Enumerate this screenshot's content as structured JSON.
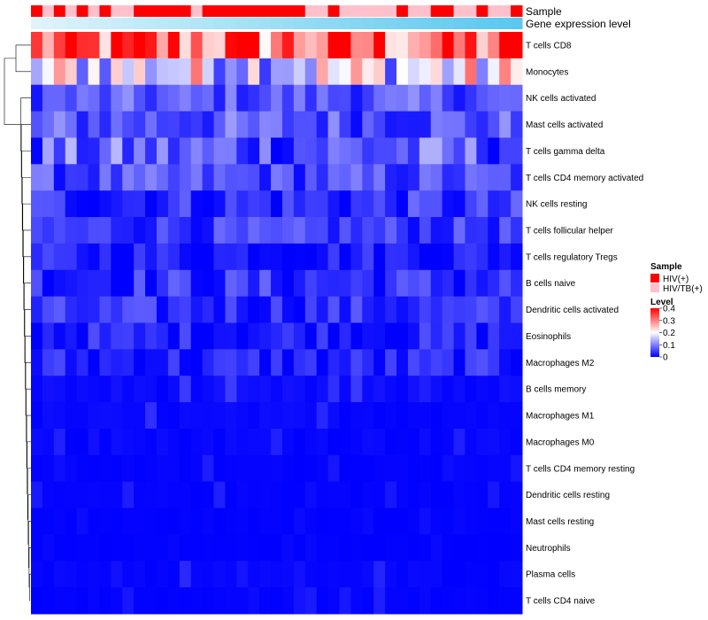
{
  "chart_data": {
    "type": "heatmap",
    "title": "",
    "annotations": [
      {
        "name": "Sample"
      },
      {
        "name": "Gene expression level"
      }
    ],
    "sample_groups": [
      "HIV(+)",
      "HIV/TB(+)",
      "HIV(+)",
      "HIV/TB(+)",
      "HIV(+)",
      "HIV/TB(+)",
      "HIV(+)",
      "HIV/TB(+)",
      "HIV/TB(+)",
      "HIV(+)",
      "HIV(+)",
      "HIV(+)",
      "HIV(+)",
      "HIV(+)",
      "HIV/TB(+)",
      "HIV(+)",
      "HIV(+)",
      "HIV(+)",
      "HIV(+)",
      "HIV(+)",
      "HIV(+)",
      "HIV(+)",
      "HIV(+)",
      "HIV(+)",
      "HIV/TB(+)",
      "HIV/TB(+)",
      "HIV(+)",
      "HIV/TB(+)",
      "HIV/TB(+)",
      "HIV/TB(+)",
      "HIV/TB(+)",
      "HIV/TB(+)",
      "HIV(+)",
      "HIV/TB(+)",
      "HIV/TB(+)",
      "HIV(+)",
      "HIV(+)",
      "HIV/TB(+)",
      "HIV/TB(+)",
      "HIV(+)",
      "HIV/TB(+)",
      "HIV/TB(+)",
      "HIV(+)"
    ],
    "rows": [
      "T cells CD8",
      "Monocytes",
      "NK cells activated",
      "Mast cells activated",
      "T cells gamma delta",
      "T cells CD4 memory activated",
      "NK cells resting",
      "T cells follicular helper",
      "T cells regulatory  Tregs",
      "B cells naive",
      "Dendritic cells activated",
      "Eosinophils",
      "Macrophages M2",
      "B cells memory",
      "Macrophages M1",
      "Macrophages M0",
      "T cells CD4 memory resting",
      "Dendritic cells resting",
      "Mast cells resting",
      "Neutrophils",
      "Plasma cells",
      "T cells CD4 naive"
    ],
    "row_base_levels": [
      0.3,
      0.17,
      0.06,
      0.06,
      0.06,
      0.05,
      0.03,
      0.04,
      0.02,
      0.03,
      0.03,
      0.02,
      0.02,
      0.015,
      0.01,
      0.01,
      0.005,
      0.005,
      0.003,
      0.002,
      0.008,
      0.004
    ],
    "row_spread": [
      0.14,
      0.14,
      0.05,
      0.06,
      0.08,
      0.05,
      0.05,
      0.04,
      0.035,
      0.05,
      0.04,
      0.04,
      0.04,
      0.035,
      0.03,
      0.03,
      0.02,
      0.02,
      0.01,
      0.005,
      0.03,
      0.02
    ],
    "n_samples": 43,
    "color_scale": {
      "min": 0,
      "max": 0.4,
      "colors": [
        "#0000ff",
        "#ffffff",
        "#ff0000"
      ],
      "midpoint": 0.2
    },
    "legend": {
      "sample_title": "Sample",
      "sample_entries": [
        {
          "label": "HIV(+)",
          "color": "#ff0000"
        },
        {
          "label": "HIV/TB(+)",
          "color": "#ffc0cb"
        }
      ],
      "level_title": "Level",
      "level_ticks": [
        "0.4",
        "0.3",
        "0.2",
        "0.1",
        "0"
      ],
      "level_values": [
        0.4,
        0.3,
        0.2,
        0.1,
        0
      ]
    },
    "gene_expression_gradient": [
      "#e0f3fb",
      "#5ac8ef"
    ]
  }
}
